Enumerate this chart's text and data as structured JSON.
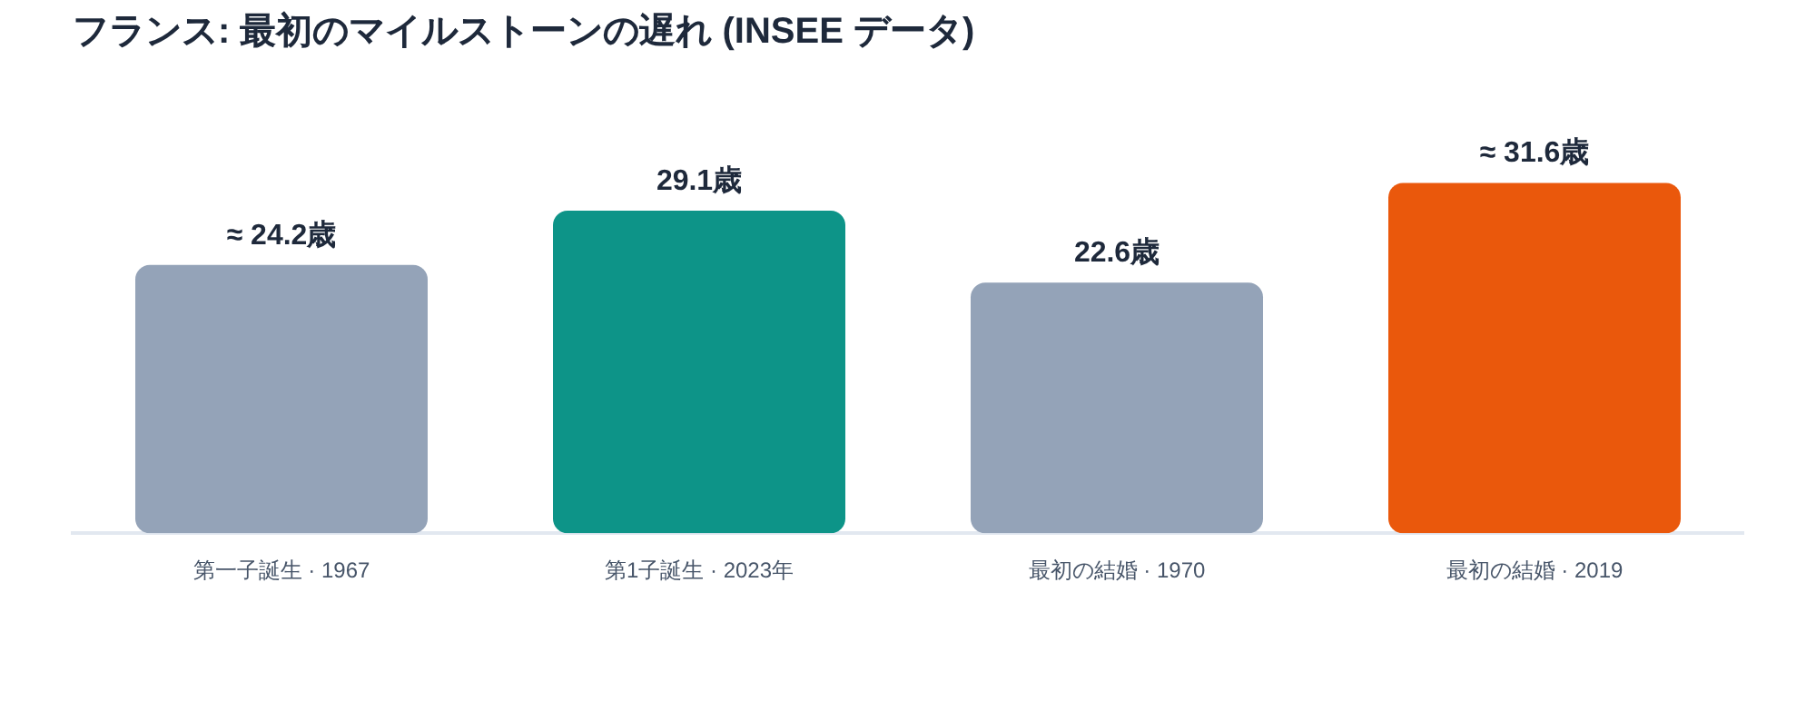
{
  "chart_data": {
    "type": "bar",
    "title": "フランス: 最初のマイルストーンの遅れ (INSEE データ)",
    "categories": [
      "第一子誕生 · 1967",
      "第1子誕生 · 2023年",
      "最初の結婚 · 1970",
      "最初の結婚 · 2019"
    ],
    "values": [
      24.2,
      29.1,
      22.6,
      31.6
    ],
    "colors": [
      "#94a3b8",
      "#0d9488",
      "#94a3b8",
      "#ea580c"
    ],
    "value_labels": [
      "≈ 24.2歳",
      "29.1歳",
      "22.6歳",
      "≈ 31.6歳"
    ],
    "grid": false,
    "legend": false
  }
}
